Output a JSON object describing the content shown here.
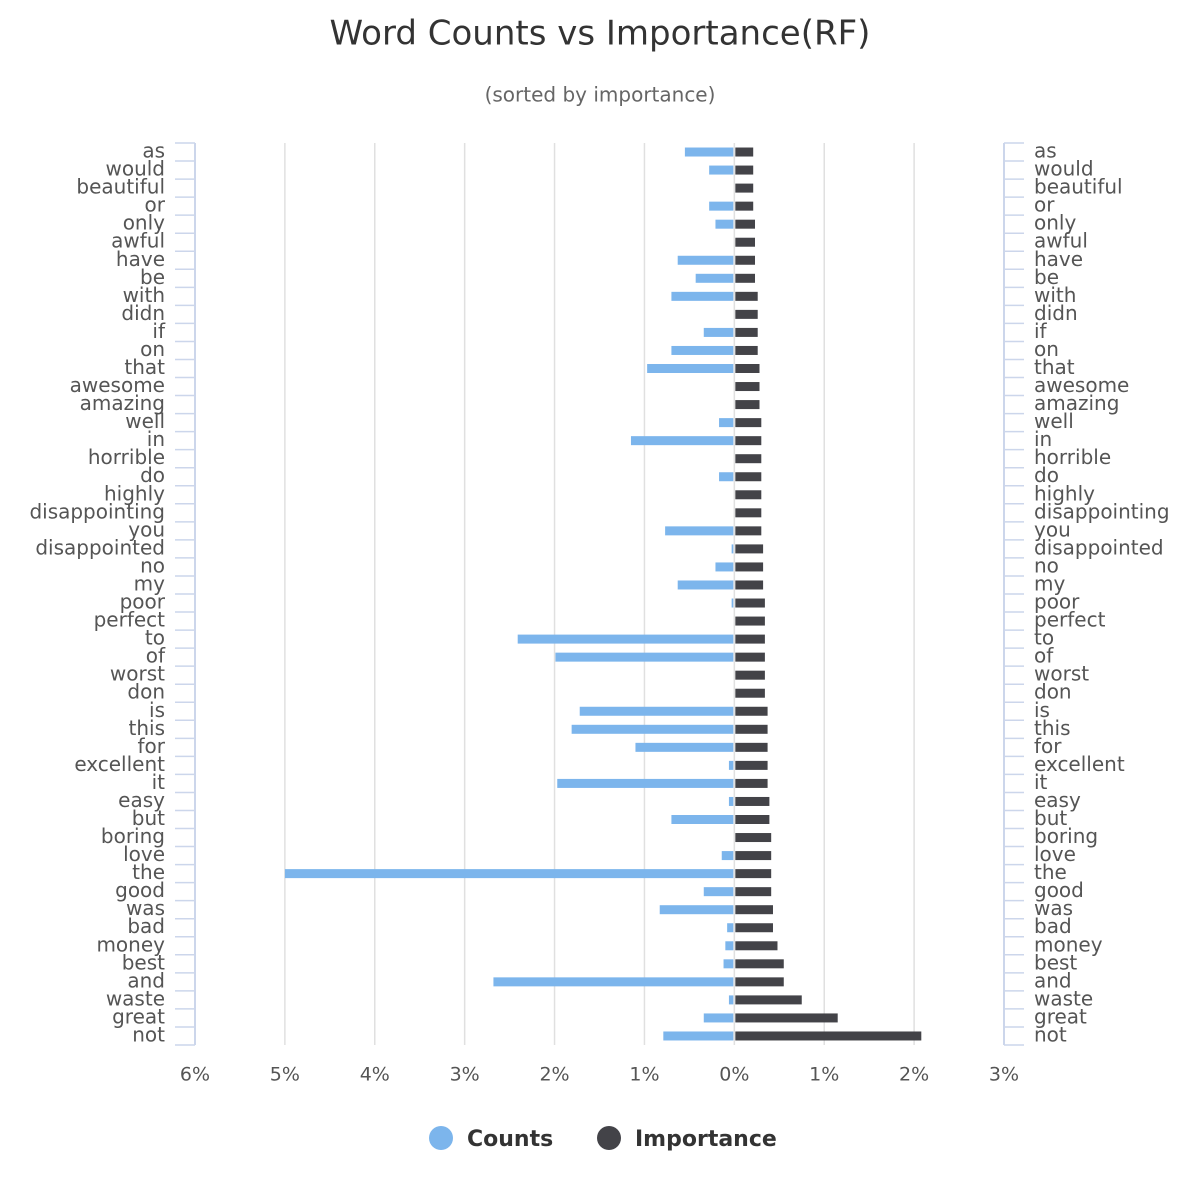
{
  "chart_data": {
    "type": "bar",
    "title": "Word Counts vs Importance(RF)",
    "subtitle": "(sorted by importance)",
    "categories": [
      "as",
      "would",
      "beautiful",
      "or",
      "only",
      "awful",
      "have",
      "be",
      "with",
      "didn",
      "if",
      "on",
      "that",
      "awesome",
      "amazing",
      "well",
      "in",
      "horrible",
      "do",
      "highly",
      "disappointing",
      "you",
      "disappointed",
      "no",
      "my",
      "poor",
      "perfect",
      "to",
      "of",
      "worst",
      "don",
      "is",
      "this",
      "for",
      "excellent",
      "it",
      "easy",
      "but",
      "boring",
      "love",
      "the",
      "good",
      "was",
      "bad",
      "money",
      "best",
      "and",
      "waste",
      "great",
      "not"
    ],
    "series": [
      {
        "name": "Counts",
        "color": "#7cb5ec",
        "values": [
          -0.55,
          -0.28,
          0,
          -0.28,
          -0.21,
          0,
          -0.63,
          -0.43,
          -0.7,
          0,
          -0.34,
          -0.7,
          -0.97,
          0,
          0,
          -0.17,
          -1.15,
          0,
          -0.17,
          0,
          0,
          -0.77,
          -0.03,
          -0.21,
          -0.63,
          -0.03,
          0,
          -2.41,
          -1.99,
          0,
          0,
          -1.72,
          -1.81,
          -1.1,
          -0.06,
          -1.97,
          -0.06,
          -0.7,
          0,
          -0.14,
          -5.0,
          -0.34,
          -0.83,
          -0.08,
          -0.1,
          -0.12,
          -2.68,
          -0.06,
          -0.34,
          -0.79
        ]
      },
      {
        "name": "Importance",
        "color": "#434348",
        "values": [
          0.21,
          0.21,
          0.21,
          0.21,
          0.23,
          0.23,
          0.23,
          0.23,
          0.26,
          0.26,
          0.26,
          0.26,
          0.28,
          0.28,
          0.28,
          0.3,
          0.3,
          0.3,
          0.3,
          0.3,
          0.3,
          0.3,
          0.32,
          0.32,
          0.32,
          0.34,
          0.34,
          0.34,
          0.34,
          0.34,
          0.34,
          0.37,
          0.37,
          0.37,
          0.37,
          0.37,
          0.39,
          0.39,
          0.41,
          0.41,
          0.41,
          0.41,
          0.43,
          0.43,
          0.48,
          0.55,
          0.55,
          0.75,
          1.15,
          2.08
        ]
      }
    ],
    "xlim": [
      -6,
      3
    ],
    "xticks": [
      {
        "value": -6,
        "label": "6%"
      },
      {
        "value": -5,
        "label": "5%"
      },
      {
        "value": -4,
        "label": "4%"
      },
      {
        "value": -3,
        "label": "3%"
      },
      {
        "value": -2,
        "label": "2%"
      },
      {
        "value": -1,
        "label": "1%"
      },
      {
        "value": 0,
        "label": "0%"
      },
      {
        "value": 1,
        "label": "1%"
      },
      {
        "value": 2,
        "label": "2%"
      },
      {
        "value": 3,
        "label": "3%"
      }
    ],
    "grid": true
  }
}
